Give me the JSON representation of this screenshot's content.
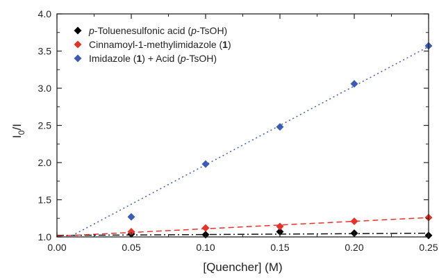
{
  "chart_data": {
    "type": "scatter",
    "xlabel": "[Quencher] (M)",
    "ylabel": {
      "main": "I",
      "sub": "0",
      "rest": "/I"
    },
    "xlim": [
      0.0,
      0.25
    ],
    "ylim": [
      1.0,
      4.0
    ],
    "x_ticks": [
      "0.00",
      "0.05",
      "0.10",
      "0.15",
      "0.20",
      "0.25"
    ],
    "y_ticks": [
      "1.0",
      "1.5",
      "2.0",
      "2.5",
      "3.0",
      "3.5",
      "4.0"
    ],
    "legend_position": "top-left",
    "series": [
      {
        "name_parts": [
          {
            "text": "p",
            "style": "italic"
          },
          {
            "text": "-Toluenesulfonic acid (",
            "style": "normal"
          },
          {
            "text": "p",
            "style": "italic"
          },
          {
            "text": "-TsOH)",
            "style": "normal"
          }
        ],
        "color": "#000000",
        "fit_style": "dash-dot",
        "x": [
          0.05,
          0.1,
          0.15,
          0.2,
          0.25
        ],
        "y": [
          1.04,
          1.03,
          1.07,
          1.05,
          1.02
        ],
        "fit": {
          "intercept": 1.02,
          "slope": 0.12
        }
      },
      {
        "name_parts": [
          {
            "text": "Cinnamoyl-1-methylimidazole (",
            "style": "normal"
          },
          {
            "text": "1",
            "style": "bold"
          },
          {
            "text": ")",
            "style": "normal"
          }
        ],
        "color": "#e8312a",
        "fit_style": "dashed",
        "x": [
          0.05,
          0.1,
          0.15,
          0.2,
          0.25
        ],
        "y": [
          1.07,
          1.12,
          1.14,
          1.21,
          1.26
        ],
        "fit": {
          "intercept": 1.01,
          "slope": 1.0
        }
      },
      {
        "name_parts": [
          {
            "text": "Imidazole (",
            "style": "normal"
          },
          {
            "text": "1",
            "style": "bold"
          },
          {
            "text": ") + Acid (",
            "style": "normal"
          },
          {
            "text": "p",
            "style": "italic"
          },
          {
            "text": "-TsOH)",
            "style": "normal"
          }
        ],
        "color": "#3b5bb5",
        "fit_style": "dotted",
        "x": [
          0.05,
          0.1,
          0.15,
          0.2,
          0.25
        ],
        "y": [
          1.27,
          1.98,
          2.48,
          3.06,
          3.57
        ],
        "fit": {
          "intercept": 0.91,
          "slope": 10.6
        }
      }
    ]
  }
}
